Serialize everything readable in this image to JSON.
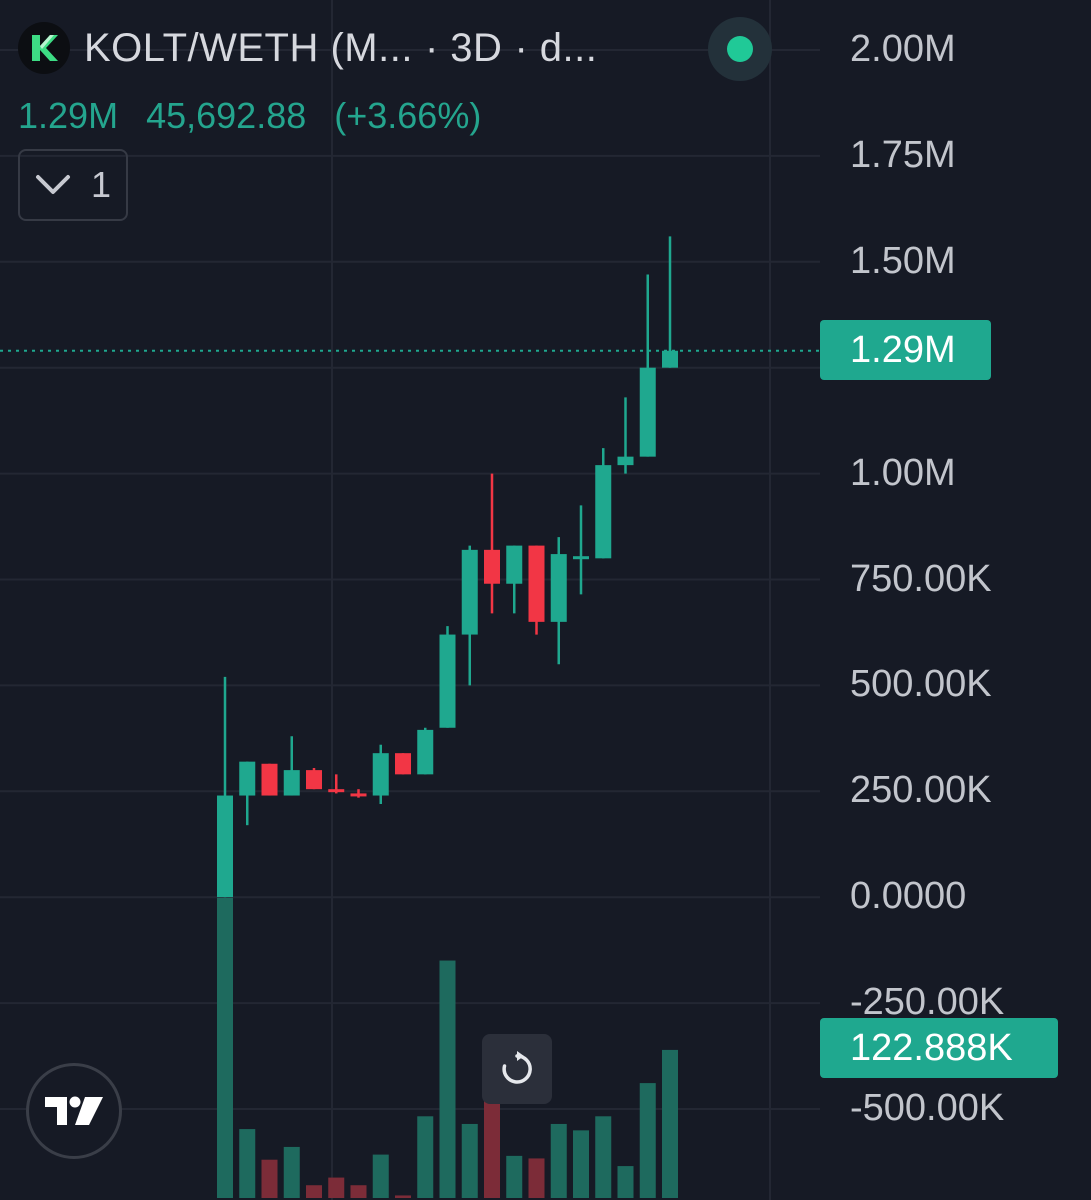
{
  "header": {
    "symbol": "KOLT/WETH (M...",
    "interval": "3D",
    "source": "d...",
    "separator": "·"
  },
  "ohlc": {
    "last": "1.29M",
    "change": "45,692.88",
    "change_pct": "(+3.66%)"
  },
  "indicator_toggle": {
    "count": "1"
  },
  "price_label": "1.29M",
  "volume_label": "122.888K",
  "icons": {
    "logo": "kolt-logo-icon",
    "status": "live-status-dot-icon",
    "collapse": "chevron-down-icon",
    "reset": "reset-chart-icon",
    "brand": "tradingview-logo-icon"
  },
  "colors": {
    "background": "#161a25",
    "up": "#1fa88f",
    "down": "#f23645",
    "up_volume": "#1e6a5e",
    "down_volume": "#7c2c38",
    "axis_text": "#c2c5cc"
  },
  "chart_data": {
    "type": "candlestick",
    "y_axis_ticks": [
      "2.00M",
      "1.75M",
      "1.50M",
      "1.25M",
      "1.00M",
      "750.00K",
      "500.00K",
      "250.00K",
      "0.0000",
      "-250.00K",
      "-500.00K"
    ],
    "y_axis_tick_values": [
      2000000,
      1750000,
      1500000,
      1250000,
      1000000,
      750000,
      500000,
      250000,
      0,
      -250000,
      -500000
    ],
    "ylim": [
      -500000,
      2000000
    ],
    "current_price": 1290000,
    "current_volume": 122888,
    "grid": true,
    "candles": [
      {
        "open": 0,
        "high": 520000,
        "low": 0,
        "close": 240000
      },
      {
        "open": 240000,
        "high": 320000,
        "low": 170000,
        "close": 320000
      },
      {
        "open": 315000,
        "high": 315000,
        "low": 240000,
        "close": 240000
      },
      {
        "open": 240000,
        "high": 380000,
        "low": 240000,
        "close": 300000
      },
      {
        "open": 300000,
        "high": 305000,
        "low": 255000,
        "close": 255000
      },
      {
        "open": 255000,
        "high": 290000,
        "low": 245000,
        "close": 248000
      },
      {
        "open": 245000,
        "high": 255000,
        "low": 235000,
        "close": 240000
      },
      {
        "open": 240000,
        "high": 360000,
        "low": 220000,
        "close": 340000
      },
      {
        "open": 340000,
        "high": 340000,
        "low": 290000,
        "close": 290000
      },
      {
        "open": 290000,
        "high": 400000,
        "low": 290000,
        "close": 395000
      },
      {
        "open": 400000,
        "high": 640000,
        "low": 400000,
        "close": 620000
      },
      {
        "open": 620000,
        "high": 830000,
        "low": 500000,
        "close": 820000
      },
      {
        "open": 820000,
        "high": 1000000,
        "low": 670000,
        "close": 740000
      },
      {
        "open": 740000,
        "high": 830000,
        "low": 670000,
        "close": 830000
      },
      {
        "open": 830000,
        "high": 830000,
        "low": 620000,
        "close": 650000
      },
      {
        "open": 650000,
        "high": 850000,
        "low": 550000,
        "close": 810000
      },
      {
        "open": 805000,
        "high": 925000,
        "low": 715000,
        "close": 805000
      },
      {
        "open": 800000,
        "high": 1060000,
        "low": 800000,
        "close": 1020000
      },
      {
        "open": 1020000,
        "high": 1180000,
        "low": 1000000,
        "close": 1040000
      },
      {
        "open": 1040000,
        "high": 1470000,
        "low": 1040000,
        "close": 1250000
      },
      {
        "open": 1250000,
        "high": 1560000,
        "low": 1250000,
        "close": 1290000
      }
    ],
    "volumes": [
      2350000,
      540000,
      300000,
      400000,
      100000,
      160000,
      100000,
      340000,
      20000,
      640000,
      1860000,
      580000,
      780000,
      330000,
      310000,
      580000,
      530000,
      640000,
      250000,
      900000,
      1160000
    ]
  }
}
